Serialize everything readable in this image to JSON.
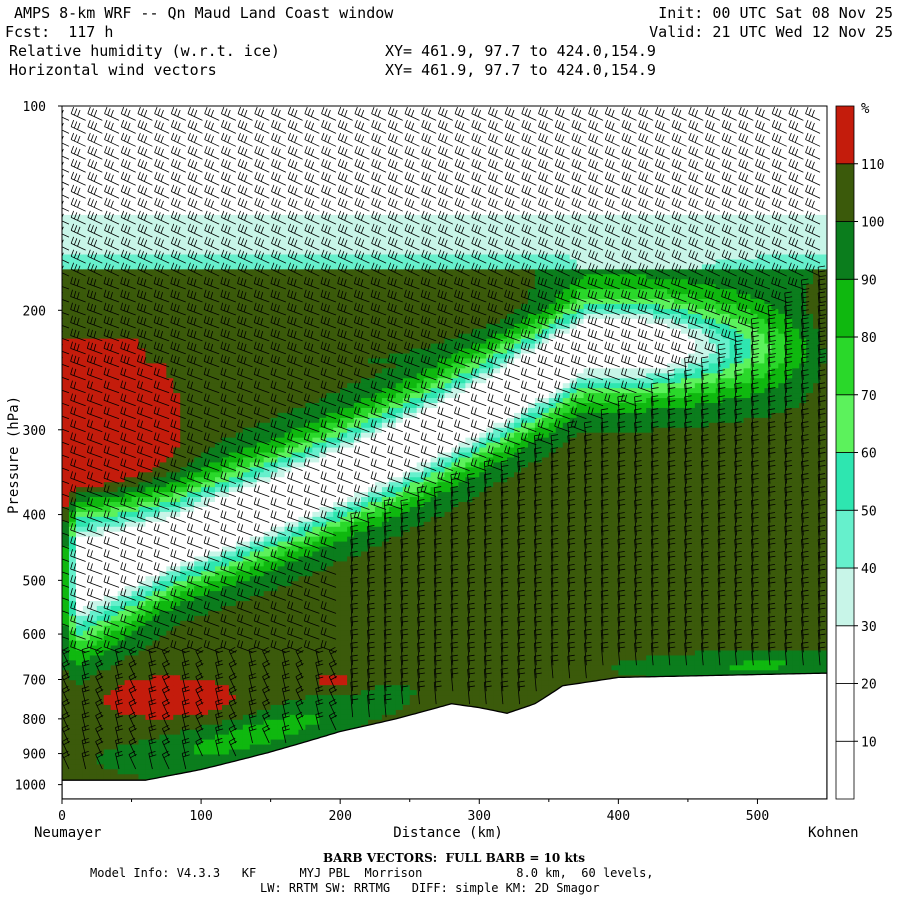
{
  "header": {
    "title": "AMPS 8-km WRF -- Qn Maud Land Coast window",
    "fcst": "Fcst:  117 h",
    "init": "Init: 00 UTC Sat 08 Nov 25",
    "valid": "Valid: 21 UTC Wed 12 Nov 25",
    "field1": "Relative humidity (w.r.t. ice)",
    "field2": "Horizontal wind vectors",
    "xy1": "XY= 461.9, 97.7 to 424.0,154.9",
    "xy2": "XY= 461.9, 97.7 to 424.0,154.9"
  },
  "footer": {
    "barb_note": "BARB VECTORS:  FULL BARB = 10 kts",
    "model_info": "Model Info: V4.3.3   KF      MYJ PBL  Morrison             8.0 km,  60 levels,",
    "model_info2": "LW: RRTM SW: RRTMG   DIFF: simple KM: 2D Smagor"
  },
  "chart_data": {
    "type": "heatmap",
    "title": "Relative humidity (w.r.t. ice)",
    "overlay": "Horizontal wind vectors (barbs)",
    "xlabel": "Distance (km)",
    "ylabel": "Pressure (hPa)",
    "x_range": [
      0,
      550
    ],
    "y_range": [
      100,
      1050
    ],
    "y_scale": "log",
    "x_ticks": [
      "0",
      "100",
      "200",
      "300",
      "400",
      "500"
    ],
    "x_tick_values": [
      0,
      100,
      200,
      300,
      400,
      500
    ],
    "y_ticks": [
      "100",
      "200",
      "300",
      "400",
      "500",
      "600",
      "700",
      "800",
      "900",
      "1000"
    ],
    "y_tick_values": [
      100,
      200,
      300,
      400,
      500,
      600,
      700,
      800,
      900,
      1000
    ],
    "left_location": "Neumayer",
    "right_location": "Kohnen",
    "colorbar": {
      "unit": "%",
      "labels": [
        "10",
        "20",
        "30",
        "40",
        "50",
        "60",
        "70",
        "80",
        "90",
        "100",
        "110"
      ],
      "values": [
        10,
        20,
        30,
        40,
        50,
        60,
        70,
        80,
        90,
        100,
        110
      ],
      "colors": [
        "#ffffff",
        "#ffffff",
        "#ffffff",
        "#c8f5e8",
        "#66f0cc",
        "#2ee6b0",
        "#5cf25c",
        "#2ad82a",
        "#0fb80f",
        "#0b7d1d",
        "#3b5a0b",
        "#c41c0c"
      ]
    },
    "terrain_surface_hPa": {
      "x": [
        0,
        60,
        100,
        150,
        200,
        240,
        280,
        300,
        320,
        340,
        360,
        400,
        550
      ],
      "p": [
        985,
        985,
        950,
        895,
        835,
        800,
        760,
        770,
        785,
        760,
        715,
        695,
        685
      ]
    },
    "rh_regions": [
      {
        "label": "110",
        "desc": "saturated patch",
        "x_range": [
          0,
          125
        ],
        "p_range": [
          690,
          810
        ]
      },
      {
        "label": "110",
        "desc": "saturated patch",
        "x_range": [
          180,
          215
        ],
        "p_range": [
          690,
          720
        ]
      },
      {
        "label": "<30",
        "desc": "dry tongue",
        "x_range": [
          10,
          330
        ],
        "p_range": [
          250,
          620
        ]
      },
      {
        "label": "100",
        "desc": "moist lower layer",
        "x_range": [
          0,
          550
        ],
        "p_range": [
          350,
          985
        ]
      }
    ]
  }
}
